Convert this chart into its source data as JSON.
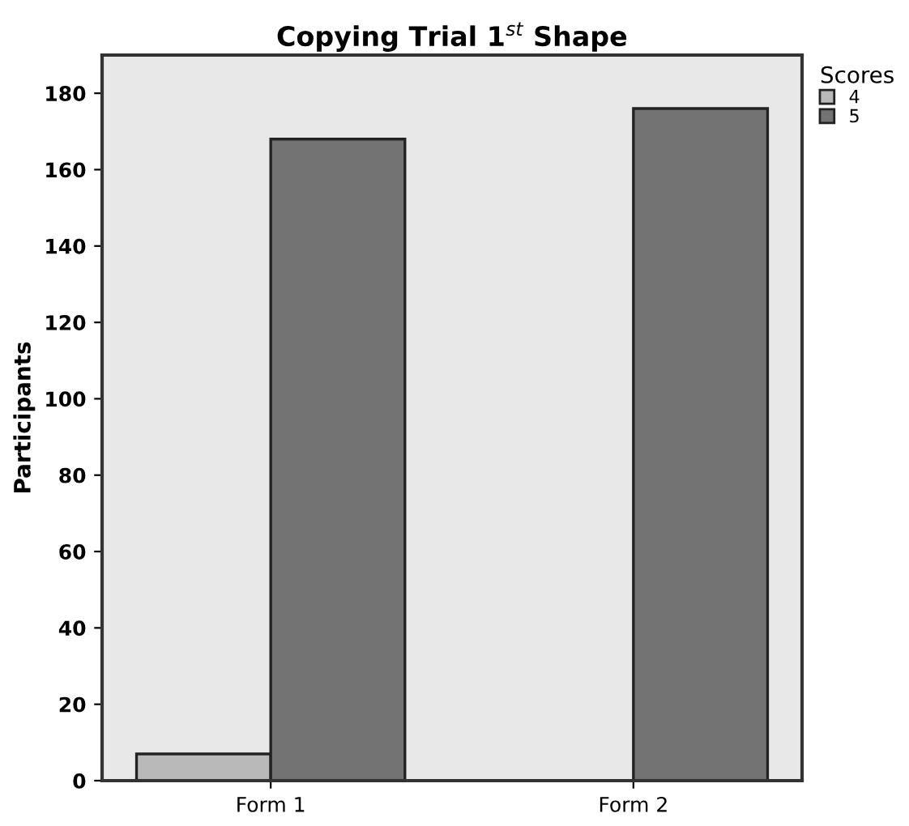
{
  "chart_data": {
    "type": "bar",
    "title": "Copying Trial 1$^{st}$ Shape",
    "ylabel": "Participants",
    "categories": [
      "Form 1",
      "Form 2"
    ],
    "series": [
      {
        "name": "4",
        "color": "#b9b9b9",
        "values": [
          7,
          null
        ]
      },
      {
        "name": "5",
        "color": "#737373",
        "values": [
          168,
          176
        ]
      }
    ],
    "legend_title": "Scores",
    "legend": "right",
    "ylim": [
      0,
      190
    ],
    "yticks": [
      0,
      20,
      40,
      60,
      80,
      100,
      120,
      140,
      160,
      180
    ],
    "grid": false
  }
}
